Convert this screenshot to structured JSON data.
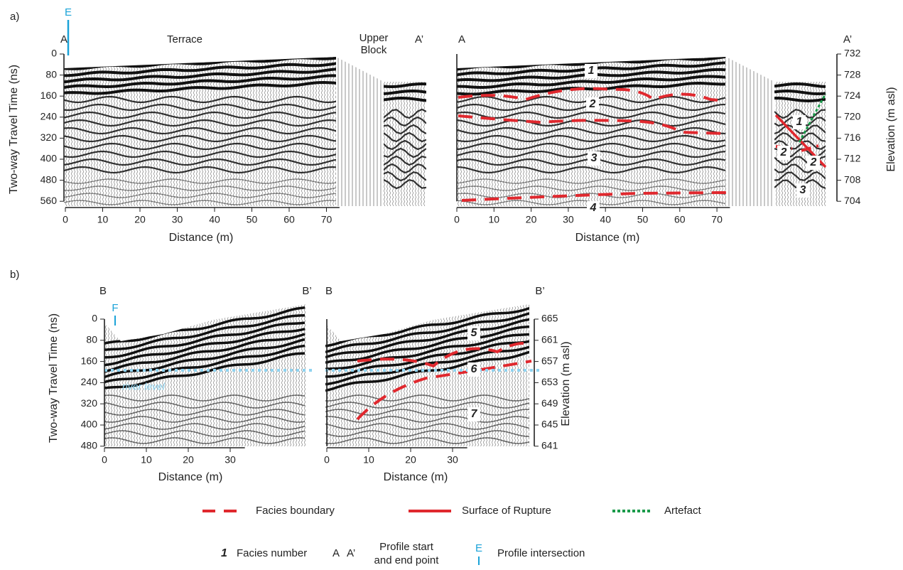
{
  "panel_a": {
    "label": "a)",
    "profile_start": "A",
    "profile_end": "A’",
    "intersection": "E",
    "annotations": [
      "Terrace",
      "Upper",
      "Block"
    ],
    "y_label": "Two-way Travel Time (ns)",
    "y_ticks": [
      0,
      80,
      160,
      240,
      320,
      400,
      480,
      560
    ],
    "x_label": "Distance (m)",
    "x_ticks": [
      0,
      10,
      20,
      30,
      40,
      50,
      60,
      70
    ],
    "y2_label": "Elevation (m asl)",
    "y2_ticks": [
      732,
      728,
      724,
      720,
      716,
      712,
      708,
      704
    ],
    "facies": [
      "1",
      "2",
      "3",
      "4",
      "1",
      "2",
      "2",
      "3"
    ]
  },
  "panel_b": {
    "label": "b)",
    "profile_start": "B",
    "profile_end": "B’",
    "intersection": "F",
    "water_label": "river level",
    "y_label": "Two-way Travel Time (ns)",
    "y_ticks": [
      0,
      80,
      160,
      240,
      320,
      400,
      480
    ],
    "x_label": "Distance (m)",
    "x_ticks": [
      0,
      10,
      20,
      30
    ],
    "y2_label": "Elevation (m asl)",
    "y2_ticks": [
      665,
      661,
      657,
      653,
      649,
      645,
      641
    ],
    "facies": [
      "5",
      "6",
      "7"
    ]
  },
  "legend": {
    "facies_boundary": "Facies boundary",
    "surface_of_rupture": "Surface of Rupture",
    "artefact": "Artefact",
    "facies_symbol": "1",
    "facies_number": "Facies number",
    "start_symbol": "A",
    "end_symbol": "A’",
    "profile_start_end": [
      "Profile start",
      "and end point"
    ],
    "intersection_symbol": "E",
    "profile_intersection": "Profile intersection"
  }
}
